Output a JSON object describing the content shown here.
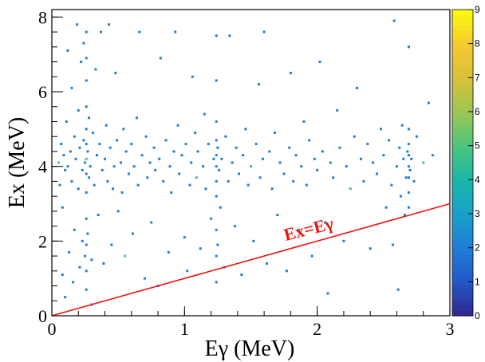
{
  "chart_data": {
    "type": "heatmap",
    "title": "",
    "xlabel": "Eγ (MeV)",
    "ylabel": "Ex (MeV)",
    "xlim": [
      0,
      3
    ],
    "ylim": [
      0,
      8.2
    ],
    "x_ticks": [
      0,
      1,
      2,
      3
    ],
    "y_ticks": [
      0,
      2,
      4,
      6,
      8
    ],
    "x_tick_labels": [
      "0",
      "1",
      "2",
      "3"
    ],
    "y_tick_labels": [
      "0",
      "2",
      "4",
      "6",
      "8"
    ],
    "colorbar": {
      "min": 0,
      "max": 9,
      "ticks": [
        0,
        1,
        2,
        3,
        4,
        5,
        6,
        7,
        8,
        9
      ],
      "tick_labels": [
        "0",
        "1",
        "2",
        "3",
        "4",
        "5",
        "6",
        "7",
        "8",
        "9"
      ],
      "palette": [
        "#2f2a8f",
        "#2359c9",
        "#1f7fd6",
        "#1aa0c9",
        "#19b7a8",
        "#4cc47e",
        "#9ac754",
        "#d6c13b",
        "#f6c82f",
        "#f9f80f"
      ]
    },
    "line": {
      "name": "Ex=Eγ",
      "points": [
        [
          0,
          0
        ],
        [
          3,
          3
        ]
      ],
      "color": "#e8160f"
    },
    "annotation": "Ex=Eγ",
    "events": {
      "marker_color": "#1f7fd6",
      "highlight_color": "#4cc47e",
      "vertical_bands_x": [
        0.26,
        1.24,
        2.69
      ],
      "dense_region_ex": [
        3.3,
        5.1
      ],
      "points": [
        [
          0.05,
          4.1
        ],
        [
          0.06,
          3.5
        ],
        [
          0.07,
          4.6
        ],
        [
          0.08,
          1.1
        ],
        [
          0.08,
          2.9
        ],
        [
          0.09,
          4.3
        ],
        [
          0.1,
          0.5
        ],
        [
          0.1,
          3.9
        ],
        [
          0.11,
          5.2
        ],
        [
          0.12,
          4.0
        ],
        [
          0.12,
          7.1
        ],
        [
          0.13,
          1.7
        ],
        [
          0.14,
          4.4
        ],
        [
          0.15,
          3.6
        ],
        [
          0.15,
          6.1
        ],
        [
          0.16,
          0.9
        ],
        [
          0.17,
          4.8
        ],
        [
          0.17,
          2.3
        ],
        [
          0.18,
          4.2
        ],
        [
          0.19,
          7.8
        ],
        [
          0.2,
          3.4
        ],
        [
          0.2,
          5.5
        ],
        [
          0.21,
          1.3
        ],
        [
          0.21,
          4.5
        ],
        [
          0.22,
          6.8
        ],
        [
          0.23,
          3.9
        ],
        [
          0.23,
          2.0
        ],
        [
          0.24,
          4.7
        ],
        [
          0.24,
          7.3
        ],
        [
          0.25,
          1.6
        ],
        [
          0.25,
          4.1
        ],
        [
          0.26,
          0.7
        ],
        [
          0.26,
          1.2
        ],
        [
          0.26,
          1.9
        ],
        [
          0.26,
          2.6
        ],
        [
          0.26,
          3.3
        ],
        [
          0.26,
          3.8
        ],
        [
          0.26,
          4.2
        ],
        [
          0.26,
          4.6
        ],
        [
          0.26,
          5.0
        ],
        [
          0.26,
          5.6
        ],
        [
          0.26,
          6.3
        ],
        [
          0.26,
          6.9
        ],
        [
          0.26,
          7.6
        ],
        [
          0.27,
          4.4
        ],
        [
          0.27,
          2.2
        ],
        [
          0.28,
          3.7
        ],
        [
          0.28,
          5.3
        ],
        [
          0.29,
          4.0
        ],
        [
          0.3,
          0.3
        ],
        [
          0.3,
          1.5
        ],
        [
          0.31,
          4.9
        ],
        [
          0.32,
          3.5
        ],
        [
          0.33,
          6.6
        ],
        [
          0.34,
          4.3
        ],
        [
          0.35,
          2.7
        ],
        [
          0.36,
          4.6
        ],
        [
          0.37,
          7.6
        ],
        [
          0.38,
          3.9
        ],
        [
          0.39,
          1.4
        ],
        [
          0.4,
          4.2
        ],
        [
          0.41,
          5.1
        ],
        [
          0.42,
          3.6
        ],
        [
          0.43,
          7.8
        ],
        [
          0.44,
          4.5
        ],
        [
          0.45,
          1.9
        ],
        [
          0.46,
          3.4
        ],
        [
          0.47,
          4.0
        ],
        [
          0.48,
          6.5
        ],
        [
          0.49,
          4.7
        ],
        [
          0.5,
          2.8
        ],
        [
          0.52,
          4.1
        ],
        [
          0.53,
          3.3
        ],
        [
          0.54,
          5.0
        ],
        [
          0.55,
          1.6
        ],
        [
          0.56,
          4.4
        ],
        [
          0.58,
          3.8
        ],
        [
          0.6,
          4.6
        ],
        [
          0.61,
          2.2
        ],
        [
          0.62,
          4.0
        ],
        [
          0.64,
          5.3
        ],
        [
          0.65,
          3.5
        ],
        [
          0.66,
          7.6
        ],
        [
          0.68,
          4.3
        ],
        [
          0.7,
          1.0
        ],
        [
          0.71,
          4.8
        ],
        [
          0.72,
          3.7
        ],
        [
          0.74,
          4.1
        ],
        [
          0.75,
          2.5
        ],
        [
          0.77,
          4.5
        ],
        [
          0.78,
          3.9
        ],
        [
          0.8,
          0.8
        ],
        [
          0.81,
          4.2
        ],
        [
          0.82,
          6.9
        ],
        [
          0.84,
          3.6
        ],
        [
          0.86,
          4.7
        ],
        [
          0.88,
          1.7
        ],
        [
          0.89,
          4.0
        ],
        [
          0.9,
          3.3
        ],
        [
          0.92,
          4.4
        ],
        [
          0.93,
          7.6
        ],
        [
          0.95,
          5.1
        ],
        [
          0.96,
          3.8
        ],
        [
          0.98,
          4.3
        ],
        [
          1.0,
          2.1
        ],
        [
          1.01,
          4.6
        ],
        [
          1.02,
          1.2
        ],
        [
          1.04,
          3.5
        ],
        [
          1.05,
          4.1
        ],
        [
          1.06,
          6.4
        ],
        [
          1.08,
          4.9
        ],
        [
          1.09,
          3.7
        ],
        [
          1.1,
          4.4
        ],
        [
          1.12,
          1.8
        ],
        [
          1.14,
          4.0
        ],
        [
          1.15,
          5.4
        ],
        [
          1.16,
          3.4
        ],
        [
          1.18,
          4.6
        ],
        [
          1.2,
          2.6
        ],
        [
          1.22,
          4.2
        ],
        [
          1.24,
          0.9
        ],
        [
          1.24,
          1.6
        ],
        [
          1.24,
          2.3
        ],
        [
          1.24,
          3.2
        ],
        [
          1.24,
          3.6
        ],
        [
          1.24,
          4.0
        ],
        [
          1.24,
          4.3
        ],
        [
          1.24,
          4.7
        ],
        [
          1.24,
          5.2
        ],
        [
          1.24,
          6.3
        ],
        [
          1.24,
          7.5
        ],
        [
          1.25,
          4.5
        ],
        [
          1.25,
          1.9
        ],
        [
          1.26,
          3.9
        ],
        [
          1.27,
          2.9
        ],
        [
          1.28,
          4.2
        ],
        [
          1.3,
          1.3
        ],
        [
          1.31,
          4.8
        ],
        [
          1.33,
          3.6
        ],
        [
          1.34,
          7.5
        ],
        [
          1.36,
          4.1
        ],
        [
          1.38,
          2.4
        ],
        [
          1.39,
          4.5
        ],
        [
          1.41,
          3.8
        ],
        [
          1.43,
          1.1
        ],
        [
          1.44,
          4.3
        ],
        [
          1.46,
          5.0
        ],
        [
          1.48,
          3.5
        ],
        [
          1.5,
          4.0
        ],
        [
          1.52,
          2.0
        ],
        [
          1.54,
          4.6
        ],
        [
          1.56,
          6.2
        ],
        [
          1.57,
          3.7
        ],
        [
          1.59,
          4.2
        ],
        [
          1.6,
          7.6
        ],
        [
          1.62,
          1.4
        ],
        [
          1.64,
          4.4
        ],
        [
          1.66,
          3.4
        ],
        [
          1.68,
          4.9
        ],
        [
          1.7,
          2.7
        ],
        [
          1.72,
          4.1
        ],
        [
          1.75,
          3.8
        ],
        [
          1.77,
          1.2
        ],
        [
          1.79,
          4.5
        ],
        [
          1.8,
          6.5
        ],
        [
          1.82,
          3.6
        ],
        [
          1.84,
          4.3
        ],
        [
          1.86,
          2.3
        ],
        [
          1.88,
          4.0
        ],
        [
          1.9,
          5.2
        ],
        [
          1.92,
          3.5
        ],
        [
          1.94,
          4.7
        ],
        [
          1.96,
          1.6
        ],
        [
          1.98,
          4.2
        ],
        [
          2.0,
          3.9
        ],
        [
          2.02,
          6.8
        ],
        [
          2.04,
          4.4
        ],
        [
          2.06,
          2.5
        ],
        [
          2.08,
          0.6
        ],
        [
          2.1,
          4.1
        ],
        [
          2.12,
          3.7
        ],
        [
          2.15,
          5.5
        ],
        [
          2.17,
          4.5
        ],
        [
          2.2,
          2.0
        ],
        [
          2.22,
          4.0
        ],
        [
          2.25,
          3.4
        ],
        [
          2.28,
          4.8
        ],
        [
          2.3,
          6.1
        ],
        [
          2.33,
          4.2
        ],
        [
          2.35,
          3.6
        ],
        [
          2.38,
          4.6
        ],
        [
          2.4,
          1.8
        ],
        [
          2.42,
          4.1
        ],
        [
          2.45,
          3.8
        ],
        [
          2.48,
          5.0
        ],
        [
          2.5,
          4.3
        ],
        [
          2.52,
          2.9
        ],
        [
          2.54,
          4.7
        ],
        [
          2.56,
          3.5
        ],
        [
          2.57,
          1.9
        ],
        [
          2.58,
          7.9
        ],
        [
          2.6,
          4.0
        ],
        [
          2.61,
          0.7
        ],
        [
          2.62,
          4.5
        ],
        [
          2.63,
          3.2
        ],
        [
          2.64,
          5.1
        ],
        [
          2.65,
          4.2
        ],
        [
          2.66,
          2.7
        ],
        [
          2.67,
          3.7
        ],
        [
          2.68,
          4.4
        ],
        [
          2.69,
          2.9
        ],
        [
          2.69,
          3.3
        ],
        [
          2.69,
          3.7
        ],
        [
          2.69,
          4.0
        ],
        [
          2.69,
          4.3
        ],
        [
          2.69,
          4.6
        ],
        [
          2.69,
          5.0
        ],
        [
          2.69,
          7.2
        ],
        [
          2.7,
          3.9
        ],
        [
          2.71,
          4.2
        ],
        [
          2.73,
          3.6
        ],
        [
          2.75,
          4.8
        ],
        [
          2.8,
          4.1
        ],
        [
          2.84,
          5.7
        ],
        [
          2.87,
          4.3
        ]
      ]
    }
  }
}
